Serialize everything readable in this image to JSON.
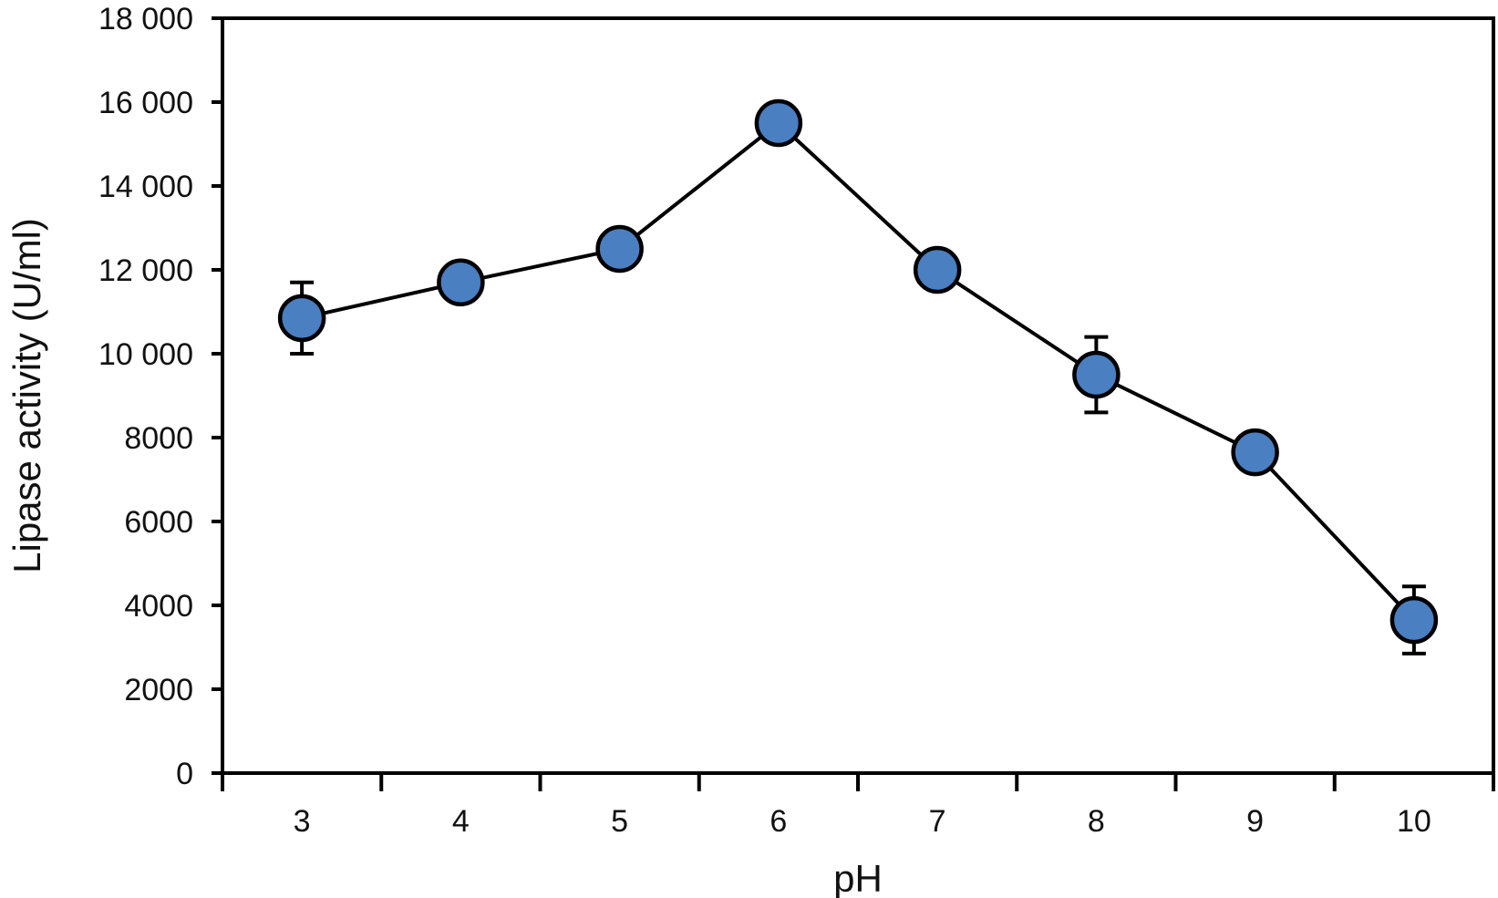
{
  "chart_data": {
    "type": "line",
    "xlabel": "pH",
    "ylabel": "Lipase activity (U/ml)",
    "x": [
      3,
      4,
      5,
      6,
      7,
      8,
      9,
      10
    ],
    "x_tick_labels": [
      "3",
      "4",
      "5",
      "6",
      "7",
      "8",
      "9",
      "10"
    ],
    "xlim": [
      2.5,
      10.5
    ],
    "ylim": [
      0,
      18000
    ],
    "y_ticks": [
      0,
      2000,
      4000,
      6000,
      8000,
      10000,
      12000,
      14000,
      16000,
      18000
    ],
    "y_tick_labels": [
      "0",
      "2000",
      "4000",
      "6000",
      "8000",
      "10 000",
      "12 000",
      "14 000",
      "16 000",
      "18 000"
    ],
    "grid": false,
    "series": [
      {
        "values": [
          10850,
          11700,
          12500,
          15500,
          12000,
          9500,
          7650,
          3650
        ],
        "error": [
          850,
          400,
          250,
          300,
          250,
          900,
          200,
          800
        ],
        "marker_color": "#4a7fc1"
      }
    ]
  }
}
